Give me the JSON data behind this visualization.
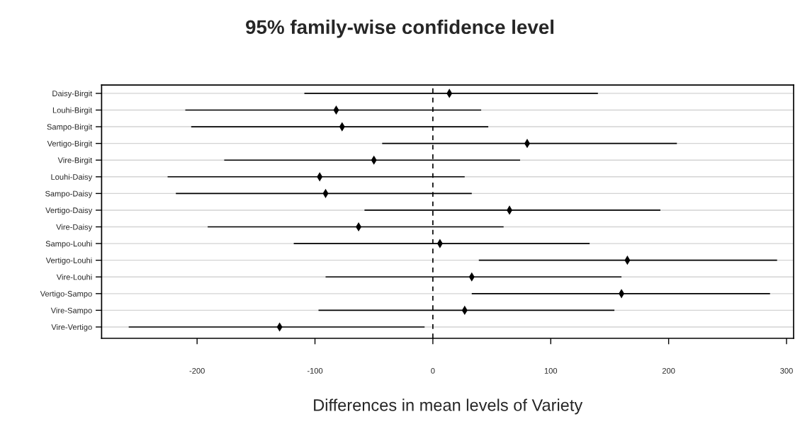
{
  "chart_data": {
    "type": "bar",
    "orientation": "horizontal",
    "title": "95% family-wise confidence level",
    "xlabel": "Differences in mean levels of Variety",
    "categories": [
      "Daisy-Birgit",
      "Louhi-Birgit",
      "Sampo-Birgit",
      "Vertigo-Birgit",
      "Vire-Birgit",
      "Louhi-Daisy",
      "Sampo-Daisy",
      "Vertigo-Daisy",
      "Vire-Daisy",
      "Sampo-Louhi",
      "Vertigo-Louhi",
      "Vire-Louhi",
      "Vertigo-Sampo",
      "Vire-Sampo",
      "Vire-Vertigo"
    ],
    "series": [
      {
        "color": "#000000",
        "base": [
          -109,
          -210,
          -205,
          -43,
          -177,
          -225,
          -218,
          -58,
          -191,
          -118,
          39,
          -91,
          33,
          -97,
          -258
        ],
        "values": [
          249,
          251,
          252,
          250,
          251,
          252,
          251,
          251,
          251,
          251,
          253,
          251,
          253,
          251,
          251
        ]
      },
      {
        "type": "scatter",
        "color": "#000000",
        "marker": "diamond",
        "values": [
          14,
          -82,
          -77,
          80,
          -50,
          -96,
          -91,
          65,
          -63,
          6,
          165,
          33,
          160,
          27,
          -130
        ]
      }
    ],
    "xlim": [
      -281,
      306
    ],
    "xticks": [
      -200,
      -100,
      0,
      100,
      200,
      300
    ],
    "ref_lines": [
      {
        "axis": "x",
        "value": 0,
        "line_style": "dashed",
        "color": "#000000"
      }
    ],
    "grid": "y"
  }
}
